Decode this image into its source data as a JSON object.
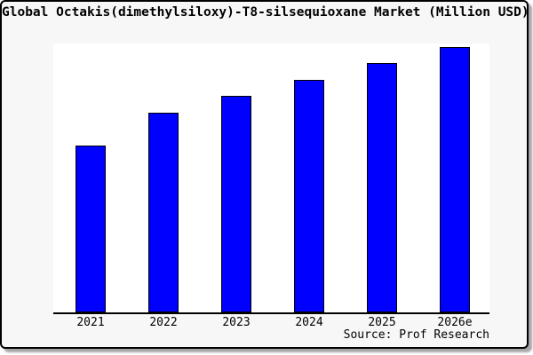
{
  "chart_data": {
    "type": "bar",
    "title": "Global Octakis(dimethylsiloxy)-T8-silsequioxane Market (Million USD)",
    "categories": [
      "2021",
      "2022",
      "2023",
      "2024",
      "2025",
      "2026e"
    ],
    "values": [
      62.9,
      75.3,
      81.6,
      87.6,
      94.0,
      100.0
    ],
    "value_note": "Relative units (2026e = 100); chart displays no y-axis scale or gridlines",
    "xlabel": "",
    "ylabel": "",
    "legend_position": "none",
    "grid": false,
    "y_axis_shown": false,
    "source": "Source: Prof Research",
    "colors": {
      "bar_fill": "#0000ff",
      "bar_border": "#000000",
      "canvas_background": "#f7f7f7",
      "plot_background": "#ffffff",
      "axis": "#000000",
      "text": "#000000"
    }
  }
}
